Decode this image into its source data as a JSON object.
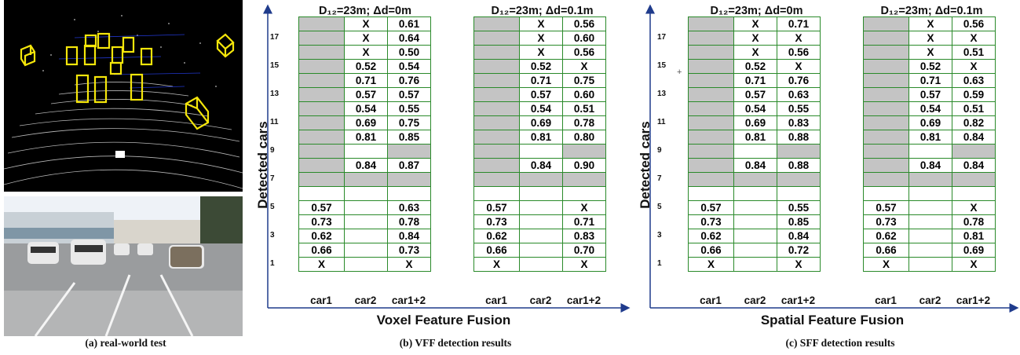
{
  "captions": {
    "a": "(a) real-world test",
    "b": "(b) VFF detection results",
    "c": "(c) SFF detection results"
  },
  "colors": {
    "grid_line": "#2a8a2a",
    "cell_gray": "#c4c4c4",
    "axis": "#1f3b8c",
    "bbox_yellow": "#f5e60a"
  },
  "panels": [
    {
      "id": "vff",
      "ylabel": "Detected cars",
      "xlabel": "Voxel Feature Fusion",
      "yticks": [
        "17",
        "15",
        "13",
        "11",
        "9",
        "7",
        "5",
        "3",
        "1"
      ],
      "tables": [
        {
          "title": "D₁₂=23m; Δd=0m",
          "columns": [
            "car1",
            "car2",
            "car1+2"
          ],
          "rows": [
            [
              null,
              "X",
              "0.61"
            ],
            [
              null,
              "X",
              "0.64"
            ],
            [
              null,
              "X",
              "0.50"
            ],
            [
              null,
              "0.52",
              "0.54"
            ],
            [
              null,
              "0.71",
              "0.76"
            ],
            [
              null,
              "0.57",
              "0.57"
            ],
            [
              null,
              "0.54",
              "0.55"
            ],
            [
              null,
              "0.69",
              "0.75"
            ],
            [
              null,
              "0.81",
              "0.85"
            ],
            [
              null,
              "",
              null
            ],
            [
              null,
              "0.84",
              "0.87"
            ],
            [
              null,
              null,
              null
            ],
            [
              "",
              "",
              ""
            ],
            [
              "0.57",
              "",
              "0.63"
            ],
            [
              "0.73",
              "",
              "0.78"
            ],
            [
              "0.62",
              "",
              "0.84"
            ],
            [
              "0.66",
              "",
              "0.73"
            ],
            [
              "X",
              "",
              "X"
            ]
          ]
        },
        {
          "title": "D₁₂=23m; Δd=0.1m",
          "columns": [
            "car1",
            "car2",
            "car1+2"
          ],
          "rows": [
            [
              null,
              "X",
              "0.56"
            ],
            [
              null,
              "X",
              "0.60"
            ],
            [
              null,
              "X",
              "0.56"
            ],
            [
              null,
              "0.52",
              "X"
            ],
            [
              null,
              "0.71",
              "0.75"
            ],
            [
              null,
              "0.57",
              "0.60"
            ],
            [
              null,
              "0.54",
              "0.51"
            ],
            [
              null,
              "0.69",
              "0.78"
            ],
            [
              null,
              "0.81",
              "0.80"
            ],
            [
              null,
              "",
              null
            ],
            [
              null,
              "0.84",
              "0.90"
            ],
            [
              null,
              null,
              null
            ],
            [
              "",
              "",
              ""
            ],
            [
              "0.57",
              "",
              "X"
            ],
            [
              "0.73",
              "",
              "0.71"
            ],
            [
              "0.62",
              "",
              "0.83"
            ],
            [
              "0.66",
              "",
              "0.70"
            ],
            [
              "X",
              "",
              "X"
            ]
          ]
        }
      ]
    },
    {
      "id": "sff",
      "ylabel": "Detected cars",
      "xlabel": "Spatial Feature Fusion",
      "yticks": [
        "17",
        "15",
        "13",
        "11",
        "9",
        "7",
        "5",
        "3",
        "1"
      ],
      "plus_marker": "+",
      "tables": [
        {
          "title": "D₁₂=23m; Δd=0m",
          "columns": [
            "car1",
            "car2",
            "car1+2"
          ],
          "rows": [
            [
              null,
              "X",
              "0.71"
            ],
            [
              null,
              "X",
              "X"
            ],
            [
              null,
              "X",
              "0.56"
            ],
            [
              null,
              "0.52",
              "X"
            ],
            [
              null,
              "0.71",
              "0.76"
            ],
            [
              null,
              "0.57",
              "0.63"
            ],
            [
              null,
              "0.54",
              "0.55"
            ],
            [
              null,
              "0.69",
              "0.83"
            ],
            [
              null,
              "0.81",
              "0.88"
            ],
            [
              null,
              "",
              null
            ],
            [
              null,
              "0.84",
              "0.88"
            ],
            [
              null,
              null,
              null
            ],
            [
              "",
              "",
              ""
            ],
            [
              "0.57",
              "",
              "0.55"
            ],
            [
              "0.73",
              "",
              "0.85"
            ],
            [
              "0.62",
              "",
              "0.84"
            ],
            [
              "0.66",
              "",
              "0.72"
            ],
            [
              "X",
              "",
              "X"
            ]
          ]
        },
        {
          "title": "D₁₂=23m; Δd=0.1m",
          "columns": [
            "car1",
            "car2",
            "car1+2"
          ],
          "rows": [
            [
              null,
              "X",
              "0.56"
            ],
            [
              null,
              "X",
              "X"
            ],
            [
              null,
              "X",
              "0.51"
            ],
            [
              null,
              "0.52",
              "X"
            ],
            [
              null,
              "0.71",
              "0.63"
            ],
            [
              null,
              "0.57",
              "0.59"
            ],
            [
              null,
              "0.54",
              "0.51"
            ],
            [
              null,
              "0.69",
              "0.82"
            ],
            [
              null,
              "0.81",
              "0.84"
            ],
            [
              null,
              "",
              null
            ],
            [
              null,
              "0.84",
              "0.84"
            ],
            [
              null,
              null,
              null
            ],
            [
              "",
              "",
              ""
            ],
            [
              "0.57",
              "",
              "X"
            ],
            [
              "0.73",
              "",
              "0.78"
            ],
            [
              "0.62",
              "",
              "0.81"
            ],
            [
              "0.66",
              "",
              "0.69"
            ],
            [
              "X",
              "",
              "X"
            ]
          ]
        }
      ]
    }
  ]
}
